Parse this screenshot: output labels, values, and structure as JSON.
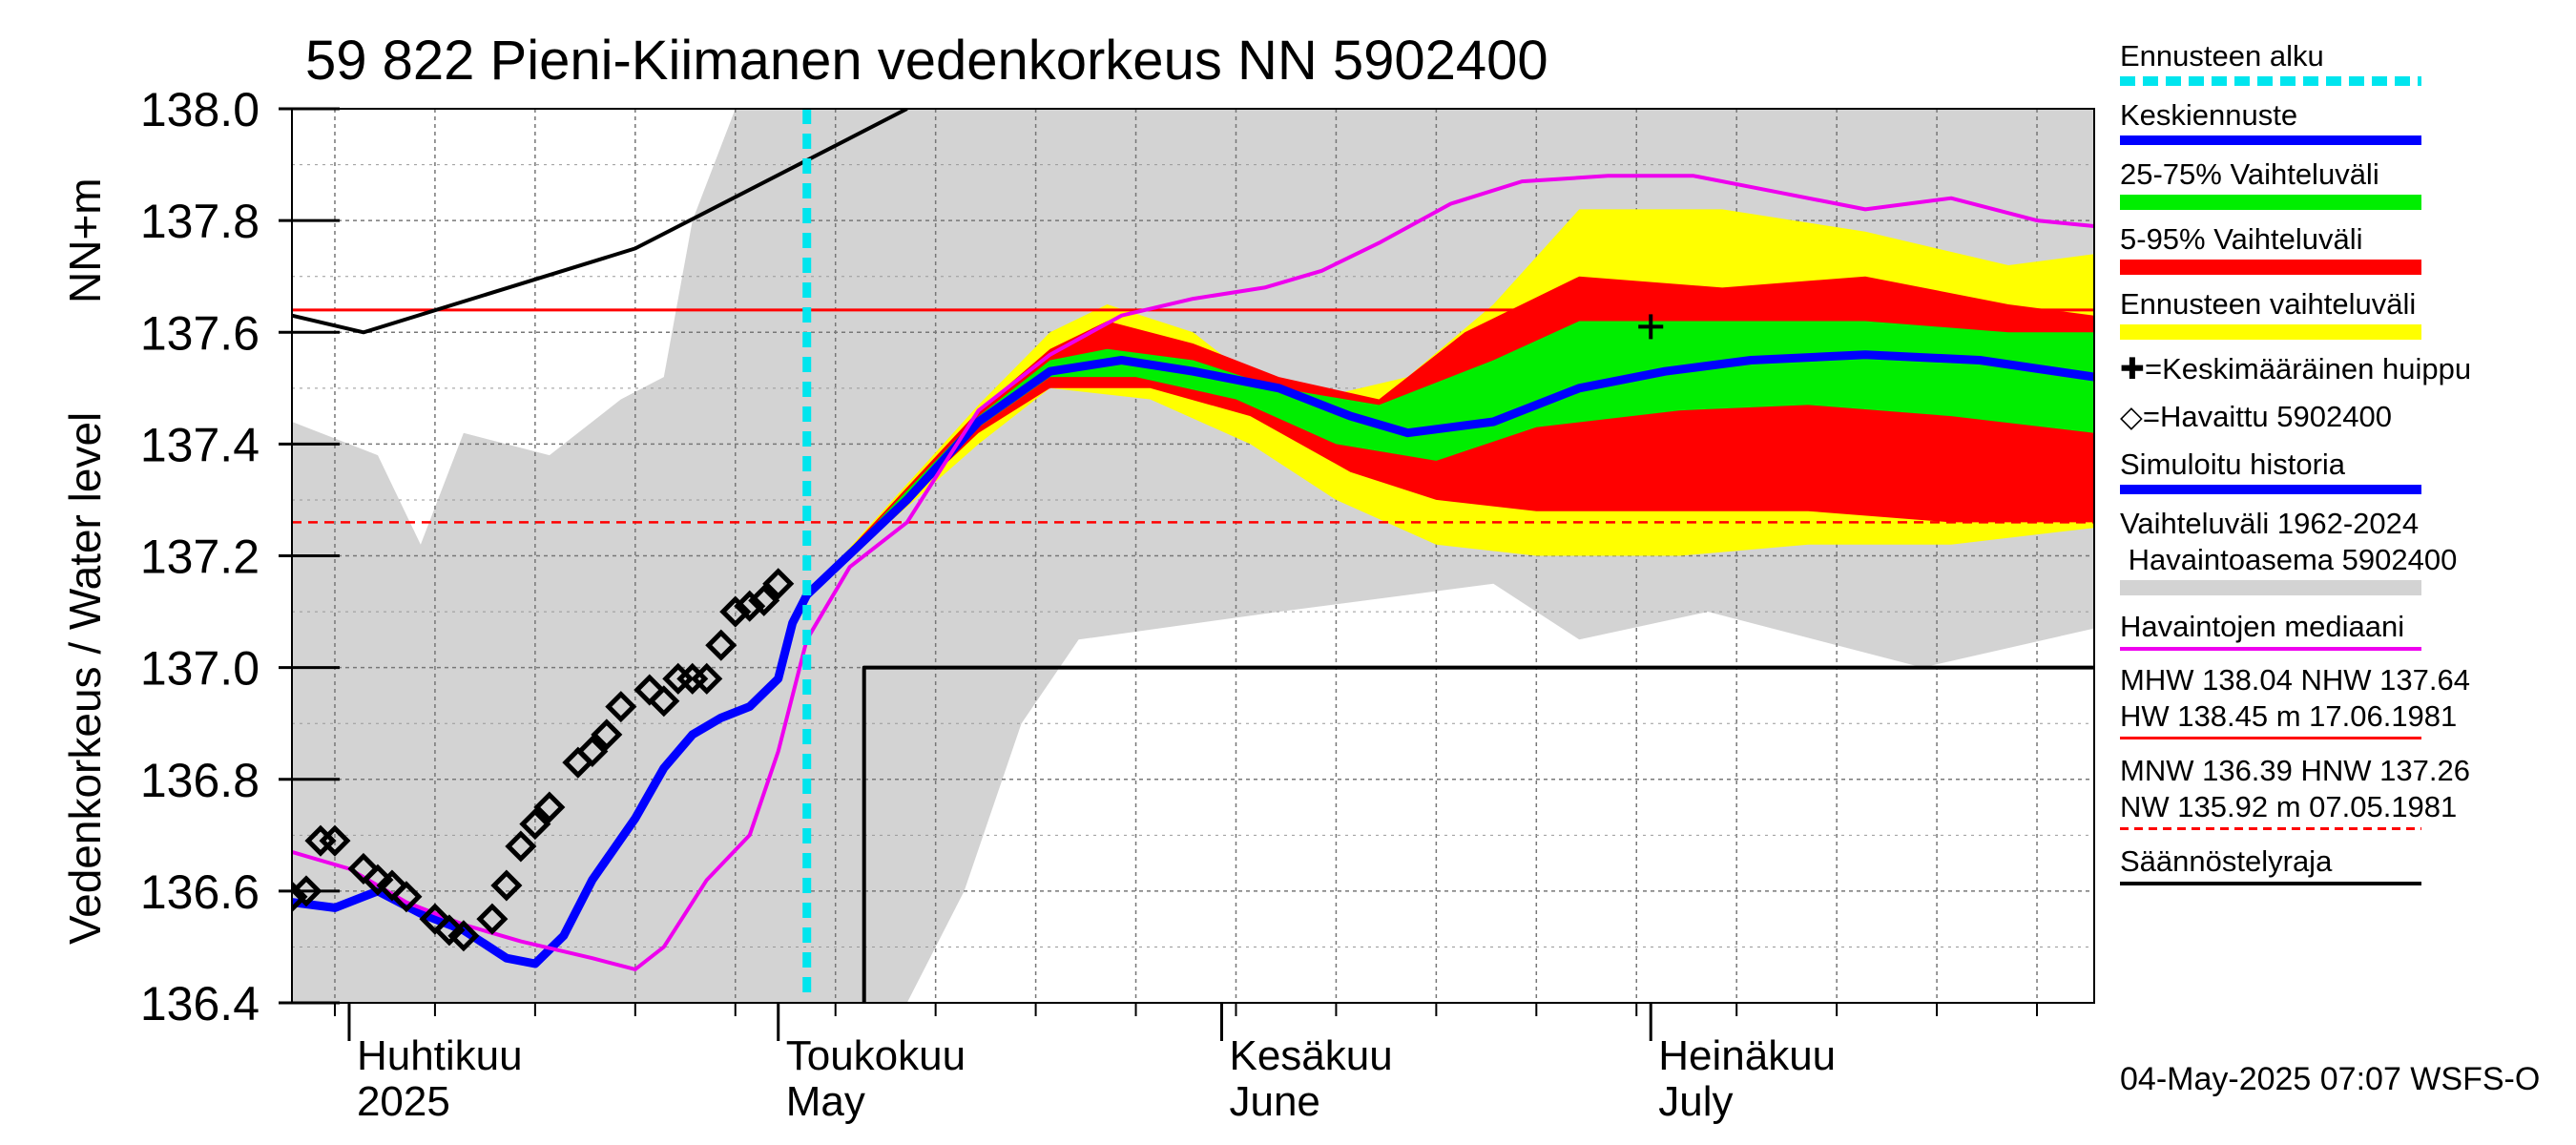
{
  "title": "59 822 Pieni-Kiimanen vedenkorkeus NN 5902400",
  "ylabel_top": "NN+m",
  "ylabel_main": "Vedenkorkeus / Water level",
  "footer": "04-May-2025 07:07 WSFS-O",
  "colors": {
    "grey_band": "#d3d3d3",
    "yellow": "#ffff00",
    "red": "#ff0000",
    "green": "#00ee00",
    "blue": "#0000ff",
    "magenta": "#ee00ee",
    "cyan": "#00e5ee",
    "black": "#000000"
  },
  "legend": [
    {
      "label": "Ennusteen alku",
      "symbol": "dashed-cyan"
    },
    {
      "label": "Keskiennuste",
      "symbol": "blue-line"
    },
    {
      "label": "25-75% Vaihteluväli",
      "symbol": "green-bar"
    },
    {
      "label": "5-95% Vaihteluväli",
      "symbol": "red-bar"
    },
    {
      "label": "Ennusteen vaihteluväli",
      "symbol": "yellow-bar"
    },
    {
      "label": "✚=Keskimääräinen huippu",
      "symbol": "none"
    },
    {
      "label": "◇=Havaittu 5902400",
      "symbol": "none"
    },
    {
      "label": "Simuloitu historia",
      "symbol": "blue-line"
    },
    {
      "label": "Vaihteluväli 1962-2024\n Havaintoasema 5902400",
      "symbol": "grey-bar"
    },
    {
      "label": "Havaintojen mediaani",
      "symbol": "magenta-line"
    },
    {
      "label": "MHW 138.04 NHW 137.64\nHW 138.45 m 17.06.1981",
      "symbol": "red-line"
    },
    {
      "label": "MNW 136.39 HNW 137.26\nNW 135.92 m 07.05.1981",
      "symbol": "red-dashed"
    },
    {
      "label": "Säännöstelyraja",
      "symbol": "black-line"
    }
  ],
  "chart_data": {
    "type": "line",
    "x_axis": "date 2025",
    "xlim": [
      "2025-03-28",
      "2025-08-01"
    ],
    "ylim": [
      136.4,
      138.0
    ],
    "yticks": [
      136.4,
      136.6,
      136.8,
      137.0,
      137.2,
      137.4,
      137.6,
      137.8,
      138.0
    ],
    "month_labels": [
      {
        "fi": "Huhtikuu",
        "en": "2025",
        "date": "2025-04-01"
      },
      {
        "fi": "Toukokuu",
        "en": "May",
        "date": "2025-05-01"
      },
      {
        "fi": "Kesäkuu",
        "en": "June",
        "date": "2025-06-01"
      },
      {
        "fi": "Heinäkuu",
        "en": "July",
        "date": "2025-07-01"
      }
    ],
    "forecast_start": "2025-05-03",
    "reference_lines": {
      "NHW": 137.64,
      "HNW": 137.26
    },
    "grey_range_upper": [
      [
        "2025-03-28",
        137.44
      ],
      [
        "2025-04-03",
        137.38
      ],
      [
        "2025-04-06",
        137.22
      ],
      [
        "2025-04-09",
        137.42
      ],
      [
        "2025-04-15",
        137.38
      ],
      [
        "2025-04-20",
        137.48
      ],
      [
        "2025-04-23",
        137.52
      ],
      [
        "2025-04-25",
        137.8
      ],
      [
        "2025-04-28",
        138.0
      ],
      [
        "2025-08-01",
        138.0
      ]
    ],
    "grey_range_lower": [
      [
        "2025-03-28",
        136.4
      ],
      [
        "2025-05-10",
        136.4
      ],
      [
        "2025-05-14",
        136.6
      ],
      [
        "2025-05-18",
        136.9
      ],
      [
        "2025-05-22",
        137.05
      ],
      [
        "2025-06-05",
        137.1
      ],
      [
        "2025-06-20",
        137.15
      ],
      [
        "2025-06-26",
        137.05
      ],
      [
        "2025-07-05",
        137.1
      ],
      [
        "2025-07-20",
        137.0
      ],
      [
        "2025-08-01",
        137.07
      ]
    ],
    "yellow_upper": [
      [
        "2025-05-03",
        137.13
      ],
      [
        "2025-05-15",
        137.47
      ],
      [
        "2025-05-20",
        137.6
      ],
      [
        "2025-05-24",
        137.65
      ],
      [
        "2025-05-30",
        137.6
      ],
      [
        "2025-06-03",
        137.52
      ],
      [
        "2025-06-09",
        137.49
      ],
      [
        "2025-06-14",
        137.52
      ],
      [
        "2025-06-20",
        137.65
      ],
      [
        "2025-06-26",
        137.82
      ],
      [
        "2025-07-06",
        137.82
      ],
      [
        "2025-07-16",
        137.78
      ],
      [
        "2025-07-26",
        137.72
      ],
      [
        "2025-08-01",
        137.74
      ]
    ],
    "yellow_lower": [
      [
        "2025-05-03",
        137.13
      ],
      [
        "2025-05-15",
        137.4
      ],
      [
        "2025-05-20",
        137.5
      ],
      [
        "2025-05-27",
        137.48
      ],
      [
        "2025-06-03",
        137.4
      ],
      [
        "2025-06-09",
        137.3
      ],
      [
        "2025-06-16",
        137.22
      ],
      [
        "2025-06-23",
        137.2
      ],
      [
        "2025-07-03",
        137.2
      ],
      [
        "2025-07-12",
        137.22
      ],
      [
        "2025-07-22",
        137.22
      ],
      [
        "2025-08-01",
        137.25
      ]
    ],
    "red_upper": [
      [
        "2025-05-03",
        137.13
      ],
      [
        "2025-05-15",
        137.46
      ],
      [
        "2025-05-20",
        137.57
      ],
      [
        "2025-05-24",
        137.62
      ],
      [
        "2025-05-30",
        137.58
      ],
      [
        "2025-06-05",
        137.52
      ],
      [
        "2025-06-12",
        137.48
      ],
      [
        "2025-06-18",
        137.6
      ],
      [
        "2025-06-26",
        137.7
      ],
      [
        "2025-07-06",
        137.68
      ],
      [
        "2025-07-16",
        137.7
      ],
      [
        "2025-07-26",
        137.65
      ],
      [
        "2025-08-01",
        137.63
      ]
    ],
    "red_lower": [
      [
        "2025-05-03",
        137.13
      ],
      [
        "2025-05-15",
        137.42
      ],
      [
        "2025-05-20",
        137.5
      ],
      [
        "2025-05-27",
        137.5
      ],
      [
        "2025-06-03",
        137.45
      ],
      [
        "2025-06-10",
        137.35
      ],
      [
        "2025-06-16",
        137.3
      ],
      [
        "2025-06-23",
        137.28
      ],
      [
        "2025-07-03",
        137.28
      ],
      [
        "2025-07-12",
        137.28
      ],
      [
        "2025-07-22",
        137.26
      ],
      [
        "2025-08-01",
        137.26
      ]
    ],
    "green_upper": [
      [
        "2025-05-03",
        137.13
      ],
      [
        "2025-05-15",
        137.45
      ],
      [
        "2025-05-20",
        137.55
      ],
      [
        "2025-05-24",
        137.57
      ],
      [
        "2025-05-30",
        137.55
      ],
      [
        "2025-06-05",
        137.5
      ],
      [
        "2025-06-12",
        137.47
      ],
      [
        "2025-06-20",
        137.55
      ],
      [
        "2025-06-26",
        137.62
      ],
      [
        "2025-07-06",
        137.62
      ],
      [
        "2025-07-16",
        137.62
      ],
      [
        "2025-07-26",
        137.6
      ],
      [
        "2025-08-01",
        137.6
      ]
    ],
    "green_lower": [
      [
        "2025-05-03",
        137.13
      ],
      [
        "2025-05-15",
        137.43
      ],
      [
        "2025-05-20",
        137.52
      ],
      [
        "2025-05-26",
        137.52
      ],
      [
        "2025-06-02",
        137.48
      ],
      [
        "2025-06-09",
        137.4
      ],
      [
        "2025-06-16",
        137.37
      ],
      [
        "2025-06-23",
        137.43
      ],
      [
        "2025-07-03",
        137.46
      ],
      [
        "2025-07-12",
        137.47
      ],
      [
        "2025-07-22",
        137.45
      ],
      [
        "2025-08-01",
        137.42
      ]
    ],
    "series": [
      {
        "name": "Keskiennuste",
        "color": "blue",
        "points": [
          [
            "2025-05-03",
            137.13
          ],
          [
            "2025-05-10",
            137.3
          ],
          [
            "2025-05-15",
            137.44
          ],
          [
            "2025-05-20",
            137.53
          ],
          [
            "2025-05-25",
            137.55
          ],
          [
            "2025-05-30",
            137.53
          ],
          [
            "2025-06-05",
            137.5
          ],
          [
            "2025-06-10",
            137.45
          ],
          [
            "2025-06-14",
            137.42
          ],
          [
            "2025-06-20",
            137.44
          ],
          [
            "2025-06-26",
            137.5
          ],
          [
            "2025-07-02",
            137.53
          ],
          [
            "2025-07-08",
            137.55
          ],
          [
            "2025-07-16",
            137.56
          ],
          [
            "2025-07-24",
            137.55
          ],
          [
            "2025-08-01",
            137.52
          ]
        ]
      },
      {
        "name": "Simuloitu historia",
        "color": "blue",
        "points": [
          [
            "2025-03-28",
            136.58
          ],
          [
            "2025-03-31",
            136.57
          ],
          [
            "2025-04-03",
            136.6
          ],
          [
            "2025-04-06",
            136.56
          ],
          [
            "2025-04-09",
            136.53
          ],
          [
            "2025-04-12",
            136.48
          ],
          [
            "2025-04-14",
            136.47
          ],
          [
            "2025-04-16",
            136.52
          ],
          [
            "2025-04-18",
            136.62
          ],
          [
            "2025-04-21",
            136.73
          ],
          [
            "2025-04-23",
            136.82
          ],
          [
            "2025-04-25",
            136.88
          ],
          [
            "2025-04-27",
            136.91
          ],
          [
            "2025-04-29",
            136.93
          ],
          [
            "2025-05-01",
            136.98
          ],
          [
            "2025-05-02",
            137.08
          ],
          [
            "2025-05-03",
            137.13
          ]
        ]
      },
      {
        "name": "Havaintojen mediaani",
        "color": "magenta",
        "points": [
          [
            "2025-03-28",
            136.67
          ],
          [
            "2025-04-01",
            136.64
          ],
          [
            "2025-04-05",
            136.58
          ],
          [
            "2025-04-09",
            136.54
          ],
          [
            "2025-04-13",
            136.51
          ],
          [
            "2025-04-18",
            136.48
          ],
          [
            "2025-04-21",
            136.46
          ],
          [
            "2025-04-23",
            136.5
          ],
          [
            "2025-04-26",
            136.62
          ],
          [
            "2025-04-29",
            136.7
          ],
          [
            "2025-05-01",
            136.85
          ],
          [
            "2025-05-03",
            137.05
          ],
          [
            "2025-05-06",
            137.18
          ],
          [
            "2025-05-10",
            137.26
          ],
          [
            "2025-05-15",
            137.46
          ],
          [
            "2025-05-20",
            137.56
          ],
          [
            "2025-05-25",
            137.63
          ],
          [
            "2025-05-30",
            137.66
          ],
          [
            "2025-06-04",
            137.68
          ],
          [
            "2025-06-08",
            137.71
          ],
          [
            "2025-06-12",
            137.76
          ],
          [
            "2025-06-17",
            137.83
          ],
          [
            "2025-06-22",
            137.87
          ],
          [
            "2025-06-28",
            137.88
          ],
          [
            "2025-07-04",
            137.88
          ],
          [
            "2025-07-10",
            137.85
          ],
          [
            "2025-07-16",
            137.82
          ],
          [
            "2025-07-22",
            137.84
          ],
          [
            "2025-07-28",
            137.8
          ],
          [
            "2025-08-01",
            137.79
          ]
        ]
      },
      {
        "name": "Havaittu 5902400",
        "color": "black",
        "marker": "diamond",
        "points": [
          [
            "2025-03-28",
            136.59
          ],
          [
            "2025-03-29",
            136.6
          ],
          [
            "2025-03-30",
            136.69
          ],
          [
            "2025-03-31",
            136.69
          ],
          [
            "2025-04-02",
            136.64
          ],
          [
            "2025-04-03",
            136.62
          ],
          [
            "2025-04-04",
            136.61
          ],
          [
            "2025-04-05",
            136.59
          ],
          [
            "2025-04-07",
            136.55
          ],
          [
            "2025-04-08",
            136.53
          ],
          [
            "2025-04-09",
            136.52
          ],
          [
            "2025-04-11",
            136.55
          ],
          [
            "2025-04-12",
            136.61
          ],
          [
            "2025-04-13",
            136.68
          ],
          [
            "2025-04-14",
            136.72
          ],
          [
            "2025-04-15",
            136.75
          ],
          [
            "2025-04-17",
            136.83
          ],
          [
            "2025-04-18",
            136.85
          ],
          [
            "2025-04-19",
            136.88
          ],
          [
            "2025-04-20",
            136.93
          ],
          [
            "2025-04-22",
            136.96
          ],
          [
            "2025-04-23",
            136.94
          ],
          [
            "2025-04-24",
            136.98
          ],
          [
            "2025-04-25",
            136.98
          ],
          [
            "2025-04-26",
            136.98
          ],
          [
            "2025-04-27",
            137.04
          ],
          [
            "2025-04-28",
            137.1
          ],
          [
            "2025-04-29",
            137.11
          ],
          [
            "2025-04-30",
            137.12
          ],
          [
            "2025-05-01",
            137.15
          ]
        ]
      },
      {
        "name": "Keskimääräinen huippu",
        "color": "black",
        "marker": "plus",
        "points": [
          [
            "2025-07-01",
            137.61
          ]
        ]
      },
      {
        "name": "MHW / upper limit",
        "color": "black",
        "points": [
          [
            "2025-03-28",
            137.63
          ],
          [
            "2025-04-02",
            137.6
          ],
          [
            "2025-04-21",
            137.75
          ],
          [
            "2025-05-10",
            138.0
          ]
        ]
      },
      {
        "name": "Säännöstelyraja",
        "color": "black",
        "points": [
          [
            "2025-05-07",
            136.4
          ],
          [
            "2025-05-07",
            137.0
          ],
          [
            "2025-08-01",
            137.0
          ]
        ]
      }
    ]
  }
}
